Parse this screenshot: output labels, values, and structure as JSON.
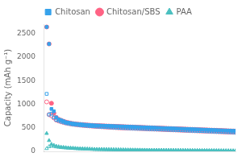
{
  "chart_data": {
    "type": "scatter",
    "ylabel": "Capacity (mAh g⁻¹)",
    "x": [
      1,
      2,
      3,
      4,
      5,
      6,
      7,
      8,
      9,
      10,
      11,
      12,
      13,
      14,
      15,
      16,
      17,
      18,
      19,
      20,
      21,
      22,
      23,
      24,
      25,
      26,
      27,
      28,
      29,
      30,
      31,
      32,
      33,
      34,
      35,
      36,
      37,
      38,
      39,
      40,
      41,
      42,
      43,
      44,
      45,
      46,
      47,
      48,
      49,
      50,
      51,
      52,
      53,
      54,
      55,
      56,
      57,
      58,
      59,
      60,
      61,
      62,
      63,
      64,
      65,
      66,
      67,
      68,
      69,
      70,
      71,
      72,
      73,
      74,
      75,
      76,
      77,
      78,
      79,
      80
    ],
    "series": [
      {
        "name": "Chitosan",
        "marker": "square",
        "values": [
          2640,
          2280,
          900,
          850,
          720,
          680,
          660,
          640,
          620,
          610,
          600,
          590,
          585,
          580,
          575,
          570,
          565,
          562,
          558,
          555,
          552,
          550,
          548,
          546,
          544,
          542,
          540,
          538,
          536,
          534,
          532,
          530,
          528,
          526,
          524,
          522,
          520,
          518,
          516,
          514,
          512,
          510,
          508,
          506,
          504,
          502,
          500,
          498,
          496,
          494,
          492,
          490,
          488,
          486,
          484,
          482,
          480,
          478,
          476,
          474,
          472,
          470,
          468,
          466,
          464,
          462,
          460,
          458,
          456,
          454,
          452,
          450,
          448,
          446,
          444,
          442,
          440,
          438,
          436,
          434
        ]
      },
      {
        "name": "Chitosan",
        "marker": "square-open",
        "values": [
          1220,
          780,
          800,
          720,
          670,
          650,
          630,
          615,
          600,
          590,
          580,
          572,
          566,
          560,
          555,
          550,
          546,
          542,
          538,
          534,
          530,
          527,
          524,
          521,
          518,
          515,
          512,
          509,
          506,
          503,
          500,
          498,
          496,
          494,
          492,
          490,
          488,
          486,
          484,
          482,
          480,
          478,
          476,
          474,
          472,
          470,
          468,
          466,
          464,
          462,
          460,
          458,
          456,
          454,
          452,
          450,
          448,
          446,
          444,
          442,
          440,
          438,
          436,
          434,
          432,
          430,
          428,
          426,
          424,
          422,
          420,
          418,
          416,
          414,
          412,
          410,
          408,
          406,
          404,
          400
        ]
      },
      {
        "name": "Chitosan/SBS",
        "marker": "circle",
        "values": [
          2640,
          2280,
          1020,
          810,
          720,
          680,
          660,
          640,
          622,
          610,
          600,
          590,
          583,
          578,
          573,
          568,
          563,
          560,
          556,
          553,
          550,
          547,
          545,
          543,
          541,
          539,
          537,
          535,
          533,
          531,
          529,
          527,
          525,
          523,
          521,
          519,
          517,
          515,
          513,
          511,
          509,
          507,
          505,
          503,
          501,
          499,
          497,
          495,
          493,
          491,
          489,
          487,
          485,
          483,
          481,
          479,
          477,
          475,
          473,
          471,
          469,
          467,
          465,
          463,
          461,
          459,
          457,
          455,
          453,
          451,
          449,
          447,
          445,
          443,
          441,
          439,
          437,
          435,
          433,
          431
        ]
      },
      {
        "name": "Chitosan/SBS",
        "marker": "circle-open",
        "values": [
          1050,
          780,
          755,
          710,
          665,
          645,
          628,
          614,
          602,
          592,
          582,
          574,
          568,
          562,
          556,
          551,
          547,
          543,
          539,
          535,
          531,
          528,
          525,
          522,
          519,
          516,
          513,
          510,
          507,
          504,
          501,
          499,
          497,
          495,
          493,
          491,
          489,
          487,
          485,
          483,
          481,
          479,
          477,
          475,
          473,
          471,
          469,
          467,
          465,
          463,
          461,
          459,
          457,
          455,
          453,
          451,
          449,
          447,
          445,
          443,
          441,
          439,
          437,
          435,
          433,
          431,
          429,
          427,
          425,
          423,
          421,
          419,
          417,
          415,
          413,
          411,
          409,
          407,
          405,
          403
        ]
      },
      {
        "name": "PAA",
        "marker": "triangle",
        "values": [
          380,
          230,
          150,
          130,
          110,
          100,
          90,
          85,
          80,
          75,
          70,
          67,
          64,
          61,
          58,
          55,
          52,
          50,
          48,
          46,
          44,
          43,
          42,
          41,
          40,
          39,
          38,
          37,
          36,
          35,
          34,
          33,
          32,
          31,
          30,
          30,
          29,
          29,
          28,
          28,
          27,
          27,
          26,
          26,
          25,
          25,
          25,
          24,
          24,
          23,
          23,
          22,
          22,
          21,
          21,
          21,
          20,
          20,
          20,
          19,
          19,
          18,
          18,
          18,
          17,
          17,
          17,
          16,
          16,
          16,
          15,
          15,
          15,
          14,
          14,
          14,
          13,
          13,
          13,
          12
        ]
      },
      {
        "name": "PAA",
        "marker": "triangle-open",
        "values": [
          60,
          100,
          115,
          105,
          95,
          88,
          82,
          77,
          73,
          69,
          65,
          62,
          59,
          56,
          54,
          52,
          50,
          48,
          46,
          44,
          42,
          41,
          40,
          39,
          38,
          37,
          36,
          35,
          34,
          33,
          32,
          31,
          30,
          29,
          28,
          28,
          27,
          27,
          26,
          26,
          25,
          25,
          24,
          24,
          23,
          23,
          22,
          22,
          21,
          21,
          20,
          20,
          19,
          19,
          18,
          18,
          18,
          17,
          17,
          17,
          16,
          16,
          15,
          15,
          15,
          14,
          14,
          14,
          13,
          13,
          13,
          12,
          12,
          12,
          11,
          11,
          11,
          10,
          10,
          10
        ]
      }
    ],
    "xlim": [
      0,
      80
    ],
    "ylim": [
      0,
      2700
    ],
    "yticks": [
      0,
      500,
      1000,
      1500,
      2000,
      2500
    ],
    "grid": false,
    "legend": "top",
    "tick_labels": "y"
  }
}
